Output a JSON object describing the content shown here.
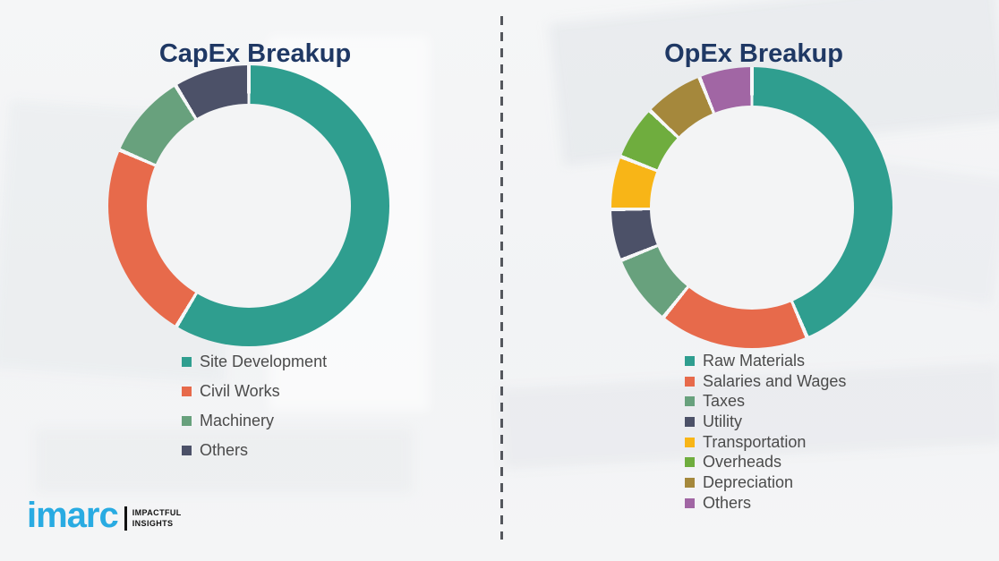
{
  "page": {
    "background_color": "#f3f4f5",
    "divider_color": "#54575d",
    "title_color": "#1f3864",
    "legend_text_color": "#4b4b4b"
  },
  "chart_data": [
    {
      "type": "pie",
      "subtype": "donut",
      "title": "CapEx Breakup",
      "categories": [
        "Site Development",
        "Civil Works",
        "Machinery",
        "Others"
      ],
      "values": [
        58.6,
        22.9,
        9.8,
        8.7
      ],
      "values_note": "percent of ring, estimated from arc angles (no numeric labels shown)",
      "colors": [
        "#2f9e8f",
        "#e76a4b",
        "#68a17d",
        "#4c5168"
      ],
      "gap_color": "#f6f7f8",
      "start_angle_deg": 0,
      "direction": "clockwise",
      "legend_position": "below-left"
    },
    {
      "type": "pie",
      "subtype": "donut",
      "title": "OpEx Breakup",
      "categories": [
        "Raw Materials",
        "Salaries and Wages",
        "Taxes",
        "Utility",
        "Transportation",
        "Overheads",
        "Depreciation",
        "Others"
      ],
      "values": [
        43.6,
        17.2,
        8.1,
        5.9,
        6.1,
        6.2,
        6.8,
        6.1
      ],
      "values_note": "percent of ring, estimated from arc angles (no numeric labels shown)",
      "colors": [
        "#2f9e8f",
        "#e76a4b",
        "#68a17d",
        "#4c5168",
        "#f8b517",
        "#6fad3e",
        "#a5883c",
        "#a166a4"
      ],
      "gap_color": "#f6f7f8",
      "start_angle_deg": 0,
      "direction": "clockwise",
      "legend_position": "below-left"
    }
  ],
  "logo": {
    "brand": "imarc",
    "brand_color": "#29abe2",
    "tagline_line1": "IMPACTFUL",
    "tagline_line2": "INSIGHTS"
  }
}
